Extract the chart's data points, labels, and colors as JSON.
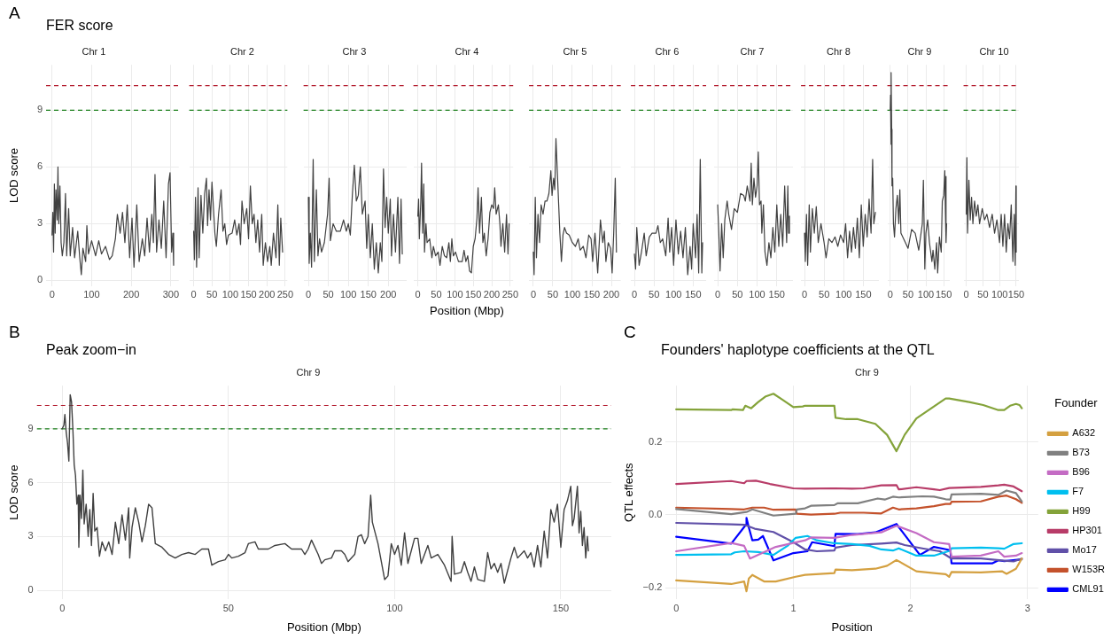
{
  "chart_data": [
    {
      "type": "line",
      "title": "FER score",
      "subtitle": "Chr 1",
      "ylabel": "LOD score",
      "annotations": [
        "A"
      ],
      "color": "#404040",
      "grid": true,
      "xlim": [
        -15,
        320
      ],
      "xticks": [
        0,
        100,
        200,
        300
      ],
      "ylim": [
        -0.3,
        11.4
      ],
      "yticks": [
        0,
        3,
        6,
        9
      ],
      "ref_lines": [
        {
          "axis": "y",
          "value": 10.3,
          "color": "#b2182b",
          "line_style": "dashed"
        },
        {
          "axis": "y",
          "value": 9,
          "color": "#1a7f1a",
          "line_style": "dashed"
        }
      ],
      "x": [
        0,
        2,
        4,
        6,
        8,
        10,
        13,
        15,
        17,
        20,
        23,
        26,
        30,
        34,
        37,
        42,
        46,
        52,
        57,
        65,
        70,
        74,
        78,
        85,
        88,
        92,
        100,
        110,
        118,
        125,
        135,
        145,
        152,
        160,
        165,
        172,
        178,
        184,
        190,
        196,
        202,
        207,
        214,
        220,
        228,
        234,
        240,
        246,
        252,
        256,
        260,
        264,
        270,
        276,
        282,
        288,
        294,
        298,
        302,
        305,
        307
      ],
      "values": [
        2.4,
        3.6,
        1.5,
        5.1,
        2.5,
        4.8,
        3.2,
        6.0,
        3.0,
        5.0,
        2.0,
        1.3,
        2.0,
        4.6,
        1.3,
        3.8,
        1.3,
        2.8,
        1.2,
        2.6,
        1.2,
        0.3,
        1.7,
        1.0,
        2.9,
        1.4,
        2.1,
        1.3,
        2.1,
        1.4,
        1.8,
        1.1,
        1.3,
        2.2,
        3.5,
        2.5,
        3.6,
        2.0,
        4.0,
        1.2,
        3.3,
        0.7,
        4.0,
        1.0,
        2.2,
        1.3,
        3.3,
        1.5,
        3.5,
        2.0,
        5.6,
        1.5,
        3.2,
        1.7,
        4.2,
        1.2,
        5.1,
        5.7,
        1.5,
        2.5,
        0.8
      ]
    },
    {
      "type": "line",
      "subtitle": "Chr 2",
      "color": "#404040",
      "grid": true,
      "tick_labels": "x",
      "xlim": [
        -12,
        256
      ],
      "xticks": [
        0,
        50,
        100,
        150,
        200,
        250
      ],
      "ylim": [
        -0.3,
        11.4
      ],
      "yticks": [
        0,
        3,
        6,
        9
      ],
      "ref_lines": [
        {
          "axis": "y",
          "value": 10.3,
          "color": "#b2182b",
          "line_style": "dashed"
        },
        {
          "axis": "y",
          "value": 9,
          "color": "#1a7f1a",
          "line_style": "dashed"
        }
      ],
      "x": [
        0,
        2,
        5,
        8,
        12,
        15,
        20,
        25,
        30,
        35,
        38,
        42,
        46,
        50,
        55,
        58,
        62,
        68,
        75,
        80,
        85,
        90,
        95,
        105,
        112,
        118,
        124,
        128,
        132,
        138,
        145,
        150,
        155,
        160,
        165,
        170,
        175,
        180,
        186,
        190,
        196,
        202,
        208,
        212,
        218,
        225,
        230,
        234,
        238,
        243
      ],
      "values": [
        2.6,
        1.1,
        4.4,
        0.7,
        4.9,
        1.2,
        4.5,
        2.5,
        4.6,
        5.4,
        2.9,
        4.8,
        3.2,
        5.2,
        3.5,
        2.5,
        1.8,
        3.5,
        4.8,
        2.6,
        3.0,
        1.9,
        2.4,
        2.5,
        3.2,
        2.4,
        3.0,
        1.9,
        4.2,
        3.0,
        3.8,
        2.2,
        5.0,
        3.0,
        3.5,
        2.0,
        3.2,
        1.5,
        3.5,
        0.8,
        2.0,
        1.0,
        1.8,
        0.8,
        2.5,
        1.2,
        4.0,
        0.8,
        3.3,
        1.5
      ]
    },
    {
      "type": "line",
      "subtitle": "Chr 3",
      "color": "#404040",
      "grid": true,
      "tick_labels": "x",
      "xlim": [
        -12,
        246
      ],
      "xticks": [
        0,
        50,
        100,
        150,
        200
      ],
      "ylim": [
        -0.3,
        11.4
      ],
      "yticks": [
        0,
        3,
        6,
        9
      ],
      "ref_lines": [
        {
          "axis": "y",
          "value": 10.3,
          "color": "#b2182b",
          "line_style": "dashed"
        },
        {
          "axis": "y",
          "value": 9,
          "color": "#1a7f1a",
          "line_style": "dashed"
        }
      ],
      "x": [
        0,
        2,
        5,
        8,
        12,
        15,
        20,
        24,
        28,
        33,
        40,
        48,
        52,
        55,
        62,
        70,
        80,
        88,
        95,
        100,
        105,
        110,
        115,
        120,
        125,
        130,
        135,
        142,
        146,
        150,
        155,
        160,
        165,
        170,
        175,
        180,
        184,
        188,
        192,
        196,
        200,
        205,
        208,
        213,
        218,
        224,
        228,
        232,
        235
      ],
      "values": [
        4.4,
        0.9,
        2.5,
        0.7,
        6.4,
        1.0,
        4.8,
        1.3,
        2.2,
        1.5,
        2.0,
        3.5,
        5.4,
        2.1,
        3.0,
        2.6,
        2.6,
        3.2,
        2.6,
        3.0,
        2.4,
        4.5,
        6.1,
        4.2,
        4.5,
        6.0,
        3.5,
        4.2,
        1.7,
        3.5,
        1.2,
        3.0,
        0.6,
        2.0,
        0.4,
        2.0,
        1.0,
        5.9,
        2.8,
        4.4,
        2.5,
        4.3,
        1.3,
        3.5,
        1.5,
        4.4,
        0.9,
        4.3,
        1.4
      ]
    },
    {
      "type": "line",
      "subtitle": "Chr 4",
      "xlabel": "Position (Mbp)",
      "color": "#404040",
      "grid": true,
      "tick_labels": "x",
      "xlim": [
        -12,
        258
      ],
      "xticks": [
        0,
        50,
        100,
        150,
        200,
        250
      ],
      "ylim": [
        -0.3,
        11.4
      ],
      "yticks": [
        0,
        3,
        6,
        9
      ],
      "ref_lines": [
        {
          "axis": "y",
          "value": 10.3,
          "color": "#b2182b",
          "line_style": "dashed"
        },
        {
          "axis": "y",
          "value": 9,
          "color": "#1a7f1a",
          "line_style": "dashed"
        }
      ],
      "x": [
        0,
        2,
        4,
        8,
        10,
        13,
        16,
        18,
        22,
        25,
        32,
        38,
        42,
        48,
        55,
        60,
        66,
        72,
        78,
        84,
        88,
        92,
        96,
        102,
        110,
        120,
        125,
        130,
        135,
        140,
        145,
        150,
        155,
        160,
        163,
        167,
        172,
        176,
        180,
        185,
        190,
        195,
        200,
        205,
        208,
        212,
        218,
        222,
        225,
        230,
        235,
        240,
        244,
        247
      ],
      "values": [
        3.4,
        4.3,
        2.2,
        4.2,
        6.2,
        2.5,
        5.1,
        1.5,
        3.0,
        2.0,
        2.2,
        1.2,
        1.8,
        1.3,
        1.5,
        0.8,
        1.8,
        1.3,
        1.2,
        2.0,
        1.0,
        2.2,
        1.3,
        1.5,
        1.0,
        1.0,
        1.6,
        1.0,
        1.3,
        0.5,
        0.4,
        1.8,
        2.2,
        3.3,
        4.9,
        2.5,
        4.4,
        2.0,
        2.5,
        1.3,
        2.2,
        3.6,
        4.0,
        3.8,
        4.9,
        3.5,
        4.0,
        3.0,
        1.8,
        3.0,
        1.5,
        3.5,
        1.4,
        3.0
      ]
    },
    {
      "type": "line",
      "subtitle": "Chr 5",
      "color": "#404040",
      "grid": true,
      "tick_labels": "x",
      "xlim": [
        -11,
        224
      ],
      "xticks": [
        0,
        50,
        100,
        150,
        200
      ],
      "ylim": [
        -0.3,
        11.4
      ],
      "yticks": [
        0,
        3,
        6,
        9
      ],
      "ref_lines": [
        {
          "axis": "y",
          "value": 10.3,
          "color": "#b2182b",
          "line_style": "dashed"
        },
        {
          "axis": "y",
          "value": 9,
          "color": "#1a7f1a",
          "line_style": "dashed"
        }
      ],
      "x": [
        0,
        2,
        5,
        8,
        12,
        16,
        20,
        25,
        30,
        35,
        40,
        45,
        48,
        52,
        55,
        58,
        62,
        65,
        68,
        72,
        76,
        80,
        85,
        92,
        100,
        108,
        115,
        120,
        128,
        135,
        142,
        148,
        152,
        158,
        165,
        172,
        178,
        182,
        186,
        192,
        198,
        202,
        206,
        210,
        213
      ],
      "values": [
        1.5,
        0.3,
        4.4,
        1.2,
        3.5,
        2.0,
        4.0,
        3.5,
        4.2,
        4.2,
        4.6,
        5.8,
        4.5,
        5.4,
        4.8,
        7.5,
        5.5,
        4.0,
        2.5,
        1.0,
        2.4,
        2.8,
        2.5,
        2.4,
        2.0,
        1.8,
        2.2,
        1.6,
        1.8,
        1.2,
        2.4,
        2.2,
        1.0,
        2.5,
        0.4,
        3.2,
        2.0,
        2.6,
        1.0,
        2.0,
        1.7,
        0.4,
        2.5,
        5.4,
        1.5
      ]
    },
    {
      "type": "line",
      "subtitle": "Chr 6",
      "color": "#404040",
      "grid": true,
      "tick_labels": "x",
      "xlim": [
        -9,
        183
      ],
      "xticks": [
        0,
        50,
        100,
        150
      ],
      "ylim": [
        -0.3,
        11.4
      ],
      "yticks": [
        0,
        3,
        6,
        9
      ],
      "ref_lines": [
        {
          "axis": "y",
          "value": 10.3,
          "color": "#b2182b",
          "line_style": "dashed"
        },
        {
          "axis": "y",
          "value": 9,
          "color": "#1a7f1a",
          "line_style": "dashed"
        }
      ],
      "x": [
        0,
        3,
        6,
        12,
        18,
        25,
        30,
        38,
        45,
        55,
        60,
        66,
        72,
        80,
        86,
        90,
        95,
        100,
        106,
        112,
        118,
        124,
        130,
        136,
        142,
        146,
        150,
        156,
        160,
        164,
        168,
        172,
        174
      ],
      "values": [
        1.4,
        0.6,
        2.8,
        0.8,
        1.5,
        2.5,
        1.3,
        2.3,
        2.5,
        2.5,
        2.9,
        2.0,
        2.2,
        1.3,
        3.3,
        1.5,
        2.8,
        0.8,
        3.2,
        1.4,
        2.6,
        1.2,
        2.8,
        0.3,
        1.8,
        0.6,
        3.0,
        1.2,
        3.5,
        0.4,
        6.4,
        0.4,
        2.0
      ]
    },
    {
      "type": "line",
      "subtitle": "Chr 7",
      "color": "#404040",
      "grid": true,
      "tick_labels": "x",
      "xlim": [
        -9,
        191
      ],
      "xticks": [
        0,
        50,
        100,
        150
      ],
      "ylim": [
        -0.3,
        11.4
      ],
      "yticks": [
        0,
        3,
        6,
        9
      ],
      "ref_lines": [
        {
          "axis": "y",
          "value": 10.3,
          "color": "#b2182b",
          "line_style": "dashed"
        },
        {
          "axis": "y",
          "value": 9,
          "color": "#1a7f1a",
          "line_style": "dashed"
        }
      ],
      "x": [
        0,
        3,
        6,
        10,
        14,
        18,
        24,
        28,
        35,
        42,
        50,
        58,
        66,
        70,
        75,
        82,
        85,
        88,
        92,
        96,
        100,
        103,
        106,
        110,
        112,
        116,
        120,
        125,
        130,
        135,
        140,
        145,
        150,
        155,
        160,
        165,
        170,
        175,
        178,
        180,
        182
      ],
      "values": [
        4.0,
        2.4,
        0.5,
        3.0,
        1.2,
        3.2,
        4.2,
        3.5,
        2.7,
        3.8,
        3.6,
        4.6,
        4.5,
        4.2,
        5.0,
        4.2,
        6.2,
        4.0,
        5.4,
        4.4,
        5.0,
        6.8,
        4.0,
        4.2,
        2.5,
        4.0,
        1.5,
        0.8,
        2.0,
        1.2,
        2.8,
        1.5,
        4.0,
        1.8,
        3.5,
        1.8,
        5.0,
        2.0,
        5.0,
        2.5,
        3.4
      ]
    },
    {
      "type": "line",
      "subtitle": "Chr 8",
      "color": "#404040",
      "grid": true,
      "tick_labels": "x",
      "xlim": [
        -9,
        190
      ],
      "xticks": [
        0,
        50,
        100,
        150
      ],
      "ylim": [
        -0.3,
        11.4
      ],
      "yticks": [
        0,
        3,
        6,
        9
      ],
      "ref_lines": [
        {
          "axis": "y",
          "value": 10.3,
          "color": "#b2182b",
          "line_style": "dashed"
        },
        {
          "axis": "y",
          "value": 9,
          "color": "#1a7f1a",
          "line_style": "dashed"
        }
      ],
      "x": [
        0,
        2,
        5,
        8,
        12,
        15,
        20,
        25,
        30,
        35,
        42,
        50,
        55,
        62,
        70,
        78,
        85,
        92,
        100,
        105,
        110,
        115,
        120,
        125,
        130,
        135,
        140,
        145,
        150,
        155,
        160,
        165,
        170,
        174,
        177,
        181
      ],
      "values": [
        2.5,
        1.0,
        3.5,
        0.8,
        4.0,
        1.5,
        3.8,
        2.5,
        3.9,
        2.0,
        3.0,
        2.0,
        1.2,
        2.2,
        2.0,
        2.3,
        1.8,
        2.4,
        2.0,
        3.0,
        1.2,
        2.6,
        1.5,
        2.8,
        1.7,
        3.3,
        1.2,
        4.0,
        1.8,
        3.5,
        2.3,
        4.3,
        2.5,
        6.4,
        3.0,
        3.6
      ]
    },
    {
      "type": "line",
      "subtitle": "Chr 9",
      "color": "#404040",
      "grid": true,
      "tick_labels": "x",
      "xlim": [
        -8,
        167
      ],
      "xticks": [
        0,
        50,
        100,
        150
      ],
      "ylim": [
        -0.3,
        11.4
      ],
      "yticks": [
        0,
        3,
        6,
        9
      ],
      "ref_lines": [
        {
          "axis": "y",
          "value": 10.3,
          "color": "#b2182b",
          "line_style": "dashed"
        },
        {
          "axis": "y",
          "value": 9,
          "color": "#1a7f1a",
          "line_style": "dashed"
        }
      ],
      "x": [
        0,
        1,
        2,
        3,
        4,
        5,
        7,
        9,
        12,
        16,
        20,
        24,
        27,
        30,
        40,
        50,
        60,
        70,
        80,
        90,
        93,
        97,
        100,
        105,
        110,
        117,
        120,
        125,
        130,
        133,
        138,
        143,
        146,
        150,
        153,
        155,
        156,
        157,
        158
      ],
      "values": [
        9.0,
        9.8,
        7.2,
        11.0,
        8.0,
        5.0,
        5.4,
        3.0,
        2.3,
        3.8,
        4.5,
        3.0,
        4.8,
        2.5,
        2.1,
        1.7,
        2.7,
        2.5,
        1.6,
        3.0,
        5.3,
        0.6,
        2.5,
        3.2,
        2.0,
        1.0,
        1.6,
        0.6,
        2.0,
        0.4,
        2.3,
        1.5,
        4.2,
        4.5,
        5.8,
        3.5,
        5.5,
        2.0,
        3.0
      ]
    },
    {
      "type": "line",
      "subtitle": "Chr 10",
      "color": "#404040",
      "grid": true,
      "tick_labels": "x",
      "xlim": [
        -8,
        158
      ],
      "xticks": [
        0,
        50,
        100,
        150
      ],
      "ylim": [
        -0.3,
        11.4
      ],
      "yticks": [
        0,
        3,
        6,
        9
      ],
      "ref_lines": [
        {
          "axis": "y",
          "value": 10.3,
          "color": "#b2182b",
          "line_style": "dashed"
        },
        {
          "axis": "y",
          "value": 9,
          "color": "#1a7f1a",
          "line_style": "dashed"
        }
      ],
      "x": [
        0,
        2,
        4,
        8,
        12,
        16,
        20,
        25,
        30,
        35,
        40,
        48,
        55,
        62,
        70,
        78,
        85,
        92,
        100,
        105,
        110,
        115,
        120,
        125,
        130,
        135,
        140,
        144,
        147,
        149,
        150
      ],
      "values": [
        3.5,
        6.5,
        2.5,
        5.3,
        3.2,
        4.4,
        3.0,
        4.2,
        3.4,
        4.0,
        3.0,
        3.8,
        3.2,
        3.5,
        2.8,
        3.5,
        2.5,
        3.2,
        2.0,
        3.5,
        1.8,
        3.5,
        1.5,
        3.0,
        2.2,
        4.0,
        1.0,
        3.5,
        0.8,
        5.0,
        1.5
      ]
    },
    {
      "type": "line",
      "title": "Peak zoom−in",
      "subtitle": "Chr 9",
      "xlabel": "Position (Mbp)",
      "ylabel": "LOD score",
      "annotations": [
        "B"
      ],
      "color": "#404040",
      "grid": true,
      "xlim": [
        -7.6,
        165.2
      ],
      "xticks": [
        0,
        50,
        100,
        150
      ],
      "ylim": [
        -0.5,
        11.4
      ],
      "yticks": [
        0,
        3,
        6,
        9
      ],
      "ref_lines": [
        {
          "axis": "y",
          "value": 10.3,
          "color": "#b2182b",
          "line_style": "dashed"
        },
        {
          "axis": "y",
          "value": 9,
          "color": "#1a7f1a",
          "line_style": "dashed"
        }
      ],
      "x": [
        0,
        0.5,
        0.8,
        1.2,
        1.6,
        2.0,
        2.4,
        2.8,
        3.2,
        3.6,
        4.0,
        4.4,
        4.8,
        5.0,
        5.4,
        5.8,
        6.2,
        6.6,
        7.2,
        7.8,
        8.3,
        8.8,
        9.3,
        9.8,
        10.5,
        11.2,
        12,
        13,
        14,
        15,
        16,
        17,
        18,
        19,
        20,
        20.3,
        21,
        22,
        23,
        24,
        25,
        26,
        27,
        28,
        30,
        32,
        34,
        36,
        38,
        40,
        42,
        44,
        45,
        47,
        49,
        50,
        51,
        53,
        55,
        56,
        58,
        59,
        62,
        64,
        67,
        69,
        72,
        73,
        74,
        75,
        77,
        78,
        79,
        81,
        82,
        84,
        85,
        86,
        88,
        89,
        90,
        91,
        92,
        92.8,
        93.3,
        95,
        96,
        97,
        98,
        99,
        100,
        101,
        102,
        103,
        104,
        106,
        107,
        108,
        110,
        111,
        113,
        115,
        117,
        117.3,
        118,
        120,
        121,
        122,
        123,
        124,
        125,
        127,
        128,
        129,
        130,
        131,
        132,
        133,
        135,
        136,
        137,
        139,
        140,
        141,
        142,
        143,
        144,
        145,
        146,
        147,
        148,
        149,
        150,
        151,
        152,
        153,
        153.5,
        154,
        155,
        155.5,
        156,
        156.5,
        157,
        157.5,
        158,
        158.3
      ],
      "values": [
        9.0,
        9.2,
        9.8,
        8.8,
        8.2,
        7.2,
        10.9,
        10.5,
        9.0,
        7.0,
        6.4,
        4.8,
        5.3,
        2.4,
        5.3,
        4.0,
        6.7,
        3.7,
        4.8,
        3.0,
        4.5,
        2.5,
        5.4,
        3.3,
        3.5,
        1.9,
        2.7,
        2.2,
        2.7,
        2.0,
        3.8,
        2.6,
        4.2,
        2.8,
        4.6,
        1.8,
        3.5,
        4.6,
        3.8,
        2.7,
        3.6,
        4.8,
        4.6,
        2.6,
        2.4,
        2.0,
        1.8,
        2.0,
        2.1,
        2.0,
        2.3,
        2.3,
        1.4,
        1.6,
        1.7,
        2.0,
        1.8,
        1.9,
        2.1,
        2.6,
        2.7,
        2.3,
        2.3,
        2.5,
        2.6,
        2.3,
        2.3,
        2.0,
        2.3,
        2.8,
        2.0,
        1.5,
        1.7,
        1.8,
        2.2,
        2.2,
        2.0,
        1.6,
        2.0,
        3.0,
        3.1,
        2.6,
        3.0,
        5.3,
        3.8,
        2.6,
        1.6,
        0.6,
        0.8,
        2.6,
        2.0,
        2.5,
        1.4,
        3.2,
        1.5,
        2.9,
        2.9,
        1.5,
        2.5,
        1.8,
        2.0,
        1.4,
        0.5,
        3.0,
        0.9,
        1.0,
        1.6,
        1.0,
        0.5,
        1.3,
        0.6,
        0.5,
        2.1,
        1.2,
        1.5,
        1.0,
        1.5,
        0.4,
        1.8,
        2.4,
        1.8,
        2.2,
        1.8,
        2.1,
        1.3,
        2.5,
        1.3,
        3.3,
        1.8,
        4.5,
        3.8,
        4.8,
        2.4,
        4.5,
        5.0,
        5.8,
        3.6,
        4.0,
        5.8,
        3.2,
        4.4,
        2.5,
        3.5,
        1.8,
        3.0,
        2.2
      ]
    },
    {
      "type": "line",
      "title": "Founders' haplotype coefficients at the QTL",
      "subtitle": "Chr 9",
      "xlabel": "Position",
      "ylabel": "QTL effects",
      "annotations": [
        "C"
      ],
      "legend": "right",
      "legend_title": "Founder",
      "grid": true,
      "xlim": [
        -0.09,
        3.09
      ],
      "xticks": [
        0,
        1,
        2,
        3
      ],
      "ylim": [
        -0.232,
        0.355
      ],
      "yticks": [
        {
          "value": -0.2,
          "label": "−0.2"
        },
        {
          "value": 0,
          "label": "0.0"
        },
        0.2
      ],
      "series": [
        {
          "name": "A632",
          "color": "#d4a040",
          "x": [
            0,
            0.47,
            0.58,
            0.6,
            0.62,
            0.65,
            0.75,
            0.85,
            1.02,
            1.1,
            1.35,
            1.36,
            1.5,
            1.7,
            1.8,
            1.88,
            2.05,
            2.2,
            2.3,
            2.33,
            2.35,
            2.6,
            2.78,
            2.82,
            2.9,
            2.95
          ],
          "values": [
            -0.18,
            -0.19,
            -0.183,
            -0.21,
            -0.175,
            -0.165,
            -0.183,
            -0.183,
            -0.17,
            -0.165,
            -0.16,
            -0.15,
            -0.152,
            -0.148,
            -0.14,
            -0.124,
            -0.155,
            -0.16,
            -0.163,
            -0.17,
            -0.157,
            -0.158,
            -0.155,
            -0.162,
            -0.148,
            -0.12
          ]
        },
        {
          "name": "B73",
          "color": "#808080",
          "x": [
            0,
            0.47,
            0.6,
            0.65,
            0.83,
            1.02,
            1.03,
            1.1,
            1.15,
            1.35,
            1.38,
            1.55,
            1.72,
            1.78,
            1.85,
            1.9,
            2.1,
            2.2,
            2.3,
            2.34,
            2.35,
            2.6,
            2.75,
            2.82,
            2.9,
            2.95
          ],
          "values": [
            0.016,
            0.002,
            0.008,
            0.015,
            -0.002,
            0.003,
            0.015,
            0.018,
            0.025,
            0.027,
            0.032,
            0.032,
            0.045,
            0.042,
            0.05,
            0.048,
            0.051,
            0.05,
            0.043,
            0.042,
            0.056,
            0.058,
            0.055,
            0.067,
            0.06,
            0.037
          ]
        },
        {
          "name": "B96",
          "color": "#c46cc4",
          "x": [
            0,
            0.47,
            0.58,
            0.63,
            0.85,
            1.1,
            1.15,
            1.35,
            1.5,
            1.75,
            1.88,
            2.05,
            2.2,
            2.33,
            2.35,
            2.6,
            2.75,
            2.8,
            2.9,
            2.95
          ],
          "values": [
            -0.1,
            -0.077,
            -0.085,
            -0.12,
            -0.088,
            -0.07,
            -0.062,
            -0.063,
            -0.055,
            -0.048,
            -0.03,
            -0.05,
            -0.075,
            -0.08,
            -0.115,
            -0.112,
            -0.1,
            -0.115,
            -0.112,
            -0.105
          ]
        },
        {
          "name": "F7",
          "color": "#00bfef",
          "x": [
            0,
            0.47,
            0.5,
            0.58,
            0.7,
            0.83,
            0.95,
            1.02,
            1.12,
            1.2,
            1.35,
            1.5,
            1.65,
            1.75,
            1.85,
            1.9,
            2.05,
            2.2,
            2.34,
            2.35,
            2.6,
            2.75,
            2.8,
            2.88,
            2.95
          ],
          "values": [
            -0.11,
            -0.108,
            -0.103,
            -0.1,
            -0.102,
            -0.11,
            -0.085,
            -0.063,
            -0.058,
            -0.07,
            -0.078,
            -0.08,
            -0.085,
            -0.095,
            -0.098,
            -0.092,
            -0.112,
            -0.112,
            -0.098,
            -0.092,
            -0.09,
            -0.092,
            -0.093,
            -0.08,
            -0.078
          ]
        },
        {
          "name": "H99",
          "color": "#84a33a",
          "x": [
            0,
            0.47,
            0.48,
            0.57,
            0.59,
            0.64,
            0.7,
            0.76,
            0.83,
            0.9,
            1.0,
            1.08,
            1.1,
            1.35,
            1.36,
            1.45,
            1.55,
            1.7,
            1.8,
            1.88,
            1.95,
            2.05,
            2.2,
            2.3,
            2.33,
            2.5,
            2.62,
            2.75,
            2.8,
            2.85,
            2.9,
            2.93,
            2.95
          ],
          "values": [
            0.29,
            0.288,
            0.29,
            0.288,
            0.3,
            0.293,
            0.31,
            0.325,
            0.333,
            0.318,
            0.296,
            0.298,
            0.3,
            0.3,
            0.267,
            0.263,
            0.263,
            0.25,
            0.22,
            0.175,
            0.22,
            0.265,
            0.298,
            0.32,
            0.32,
            0.31,
            0.302,
            0.288,
            0.288,
            0.3,
            0.305,
            0.302,
            0.293
          ]
        },
        {
          "name": "HP301",
          "color": "#b83c68",
          "x": [
            0,
            0.47,
            0.58,
            0.6,
            0.68,
            0.8,
            1.0,
            1.1,
            1.35,
            1.5,
            1.6,
            1.75,
            1.88,
            1.9,
            2.05,
            2.2,
            2.25,
            2.33,
            2.6,
            2.75,
            2.8,
            2.88,
            2.95
          ],
          "values": [
            0.085,
            0.093,
            0.087,
            0.093,
            0.094,
            0.085,
            0.073,
            0.072,
            0.073,
            0.072,
            0.073,
            0.081,
            0.082,
            0.07,
            0.076,
            0.07,
            0.068,
            0.074,
            0.077,
            0.081,
            0.083,
            0.078,
            0.065
          ]
        },
        {
          "name": "Mo17",
          "color": "#6050a8",
          "x": [
            0,
            0.47,
            0.58,
            0.67,
            0.83,
            1.0,
            1.1,
            1.2,
            1.35,
            1.36,
            1.5,
            1.75,
            1.88,
            1.95,
            2.1,
            2.25,
            2.35,
            2.6,
            2.8,
            2.88,
            2.95
          ],
          "values": [
            -0.022,
            -0.026,
            -0.027,
            -0.038,
            -0.047,
            -0.075,
            -0.095,
            -0.1,
            -0.098,
            -0.09,
            -0.083,
            -0.079,
            -0.076,
            -0.083,
            -0.092,
            -0.1,
            -0.12,
            -0.12,
            -0.126,
            -0.128,
            -0.12
          ]
        },
        {
          "name": "W153R",
          "color": "#c4522c",
          "x": [
            0,
            0.47,
            0.58,
            0.65,
            0.75,
            0.83,
            1.02,
            1.03,
            1.15,
            1.35,
            1.4,
            1.6,
            1.75,
            1.85,
            1.9,
            2.05,
            2.2,
            2.3,
            2.34,
            2.35,
            2.6,
            2.75,
            2.82,
            2.9,
            2.95
          ],
          "values": [
            0.02,
            0.016,
            0.015,
            0.02,
            0.02,
            0.014,
            0.015,
            0.003,
            0.001,
            0.003,
            0.006,
            0.006,
            0.004,
            0.02,
            0.015,
            0.018,
            0.024,
            0.03,
            0.03,
            0.036,
            0.037,
            0.05,
            0.053,
            0.043,
            0.033
          ]
        },
        {
          "name": "CML91",
          "color": "#0000ff",
          "x": [
            0,
            0.47,
            0.6,
            0.6,
            0.62,
            0.65,
            0.7,
            0.74,
            0.83,
            1.0,
            1.12,
            1.16,
            1.35,
            1.36,
            1.55,
            1.7,
            1.88,
            2.08,
            2.2,
            2.34,
            2.35,
            2.7,
            2.75,
            2.8,
            2.95
          ],
          "values": [
            -0.06,
            -0.079,
            -0.025,
            -0.008,
            -0.035,
            -0.07,
            -0.068,
            -0.058,
            -0.125,
            -0.105,
            -0.1,
            -0.075,
            -0.086,
            -0.052,
            -0.053,
            -0.048,
            -0.025,
            -0.11,
            -0.088,
            -0.097,
            -0.133,
            -0.133,
            -0.125,
            -0.127,
            -0.122
          ]
        }
      ]
    }
  ]
}
